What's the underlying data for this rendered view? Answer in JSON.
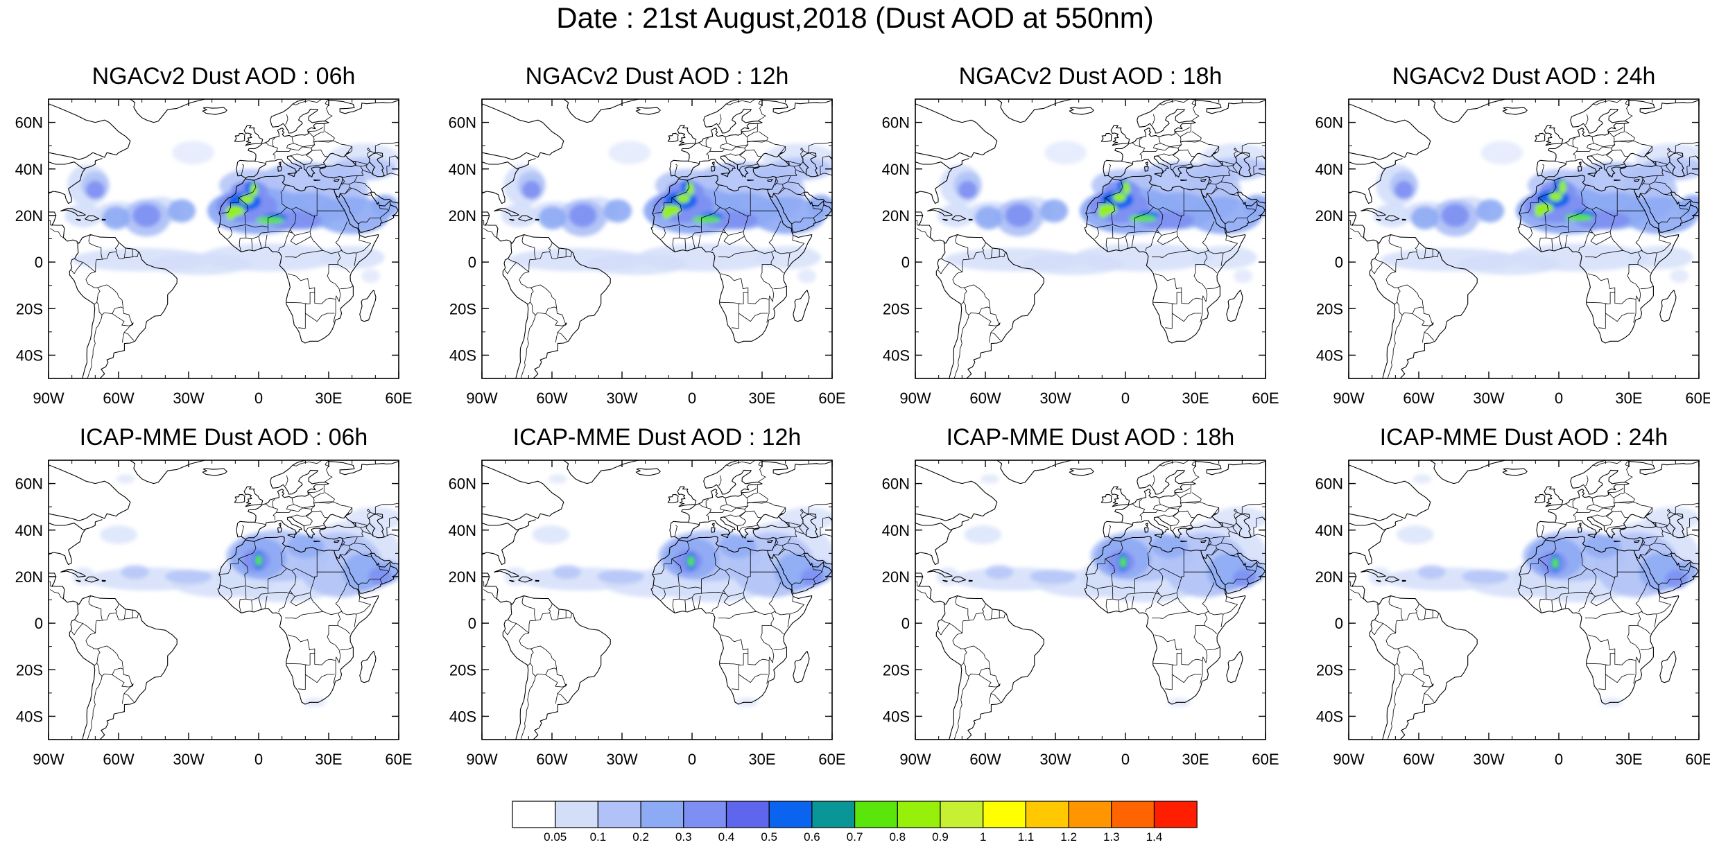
{
  "title": "Date : 21st August,2018 (Dust AOD at 550nm)",
  "panels": [
    {
      "title": "NGACv2 Dust AOD : 06h",
      "model": "NGACv2",
      "hour": 6
    },
    {
      "title": "NGACv2 Dust AOD : 12h",
      "model": "NGACv2",
      "hour": 12
    },
    {
      "title": "NGACv2 Dust AOD : 18h",
      "model": "NGACv2",
      "hour": 18
    },
    {
      "title": "NGACv2 Dust AOD : 24h",
      "model": "NGACv2",
      "hour": 24
    },
    {
      "title": "ICAP-MME Dust AOD : 06h",
      "model": "ICAP-MME",
      "hour": 6
    },
    {
      "title": "ICAP-MME Dust AOD : 12h",
      "model": "ICAP-MME",
      "hour": 12
    },
    {
      "title": "ICAP-MME Dust AOD : 18h",
      "model": "ICAP-MME",
      "hour": 18
    },
    {
      "title": "ICAP-MME Dust AOD : 24h",
      "model": "ICAP-MME",
      "hour": 24
    }
  ],
  "map_extent": {
    "lon": [
      -90,
      60
    ],
    "lat": [
      -50,
      70
    ]
  },
  "lat_ticks": [
    {
      "value": 60,
      "label": "60N"
    },
    {
      "value": 40,
      "label": "40N"
    },
    {
      "value": 20,
      "label": "20N"
    },
    {
      "value": 0,
      "label": "0"
    },
    {
      "value": -20,
      "label": "20S"
    },
    {
      "value": -40,
      "label": "40S"
    }
  ],
  "lon_ticks": [
    {
      "value": -90,
      "label": "90W"
    },
    {
      "value": -60,
      "label": "60W"
    },
    {
      "value": -30,
      "label": "30W"
    },
    {
      "value": 0,
      "label": "0"
    },
    {
      "value": 30,
      "label": "30E"
    },
    {
      "value": 60,
      "label": "60E"
    }
  ],
  "colorbar": {
    "labels": [
      "0.05",
      "0.1",
      "0.2",
      "0.3",
      "0.4",
      "0.5",
      "0.6",
      "0.7",
      "0.8",
      "0.9",
      "1",
      "1.1",
      "1.2",
      "1.3",
      "1.4"
    ],
    "colors": [
      "#ffffff",
      "#d3def9",
      "#b0c2f7",
      "#8daaf4",
      "#7d8ff2",
      "#5d66ec",
      "#0a64f0",
      "#0a9696",
      "#5ae60a",
      "#96f00a",
      "#c8f032",
      "#ffff00",
      "#ffc800",
      "#ff9600",
      "#ff6400",
      "#ff1e00"
    ]
  }
}
